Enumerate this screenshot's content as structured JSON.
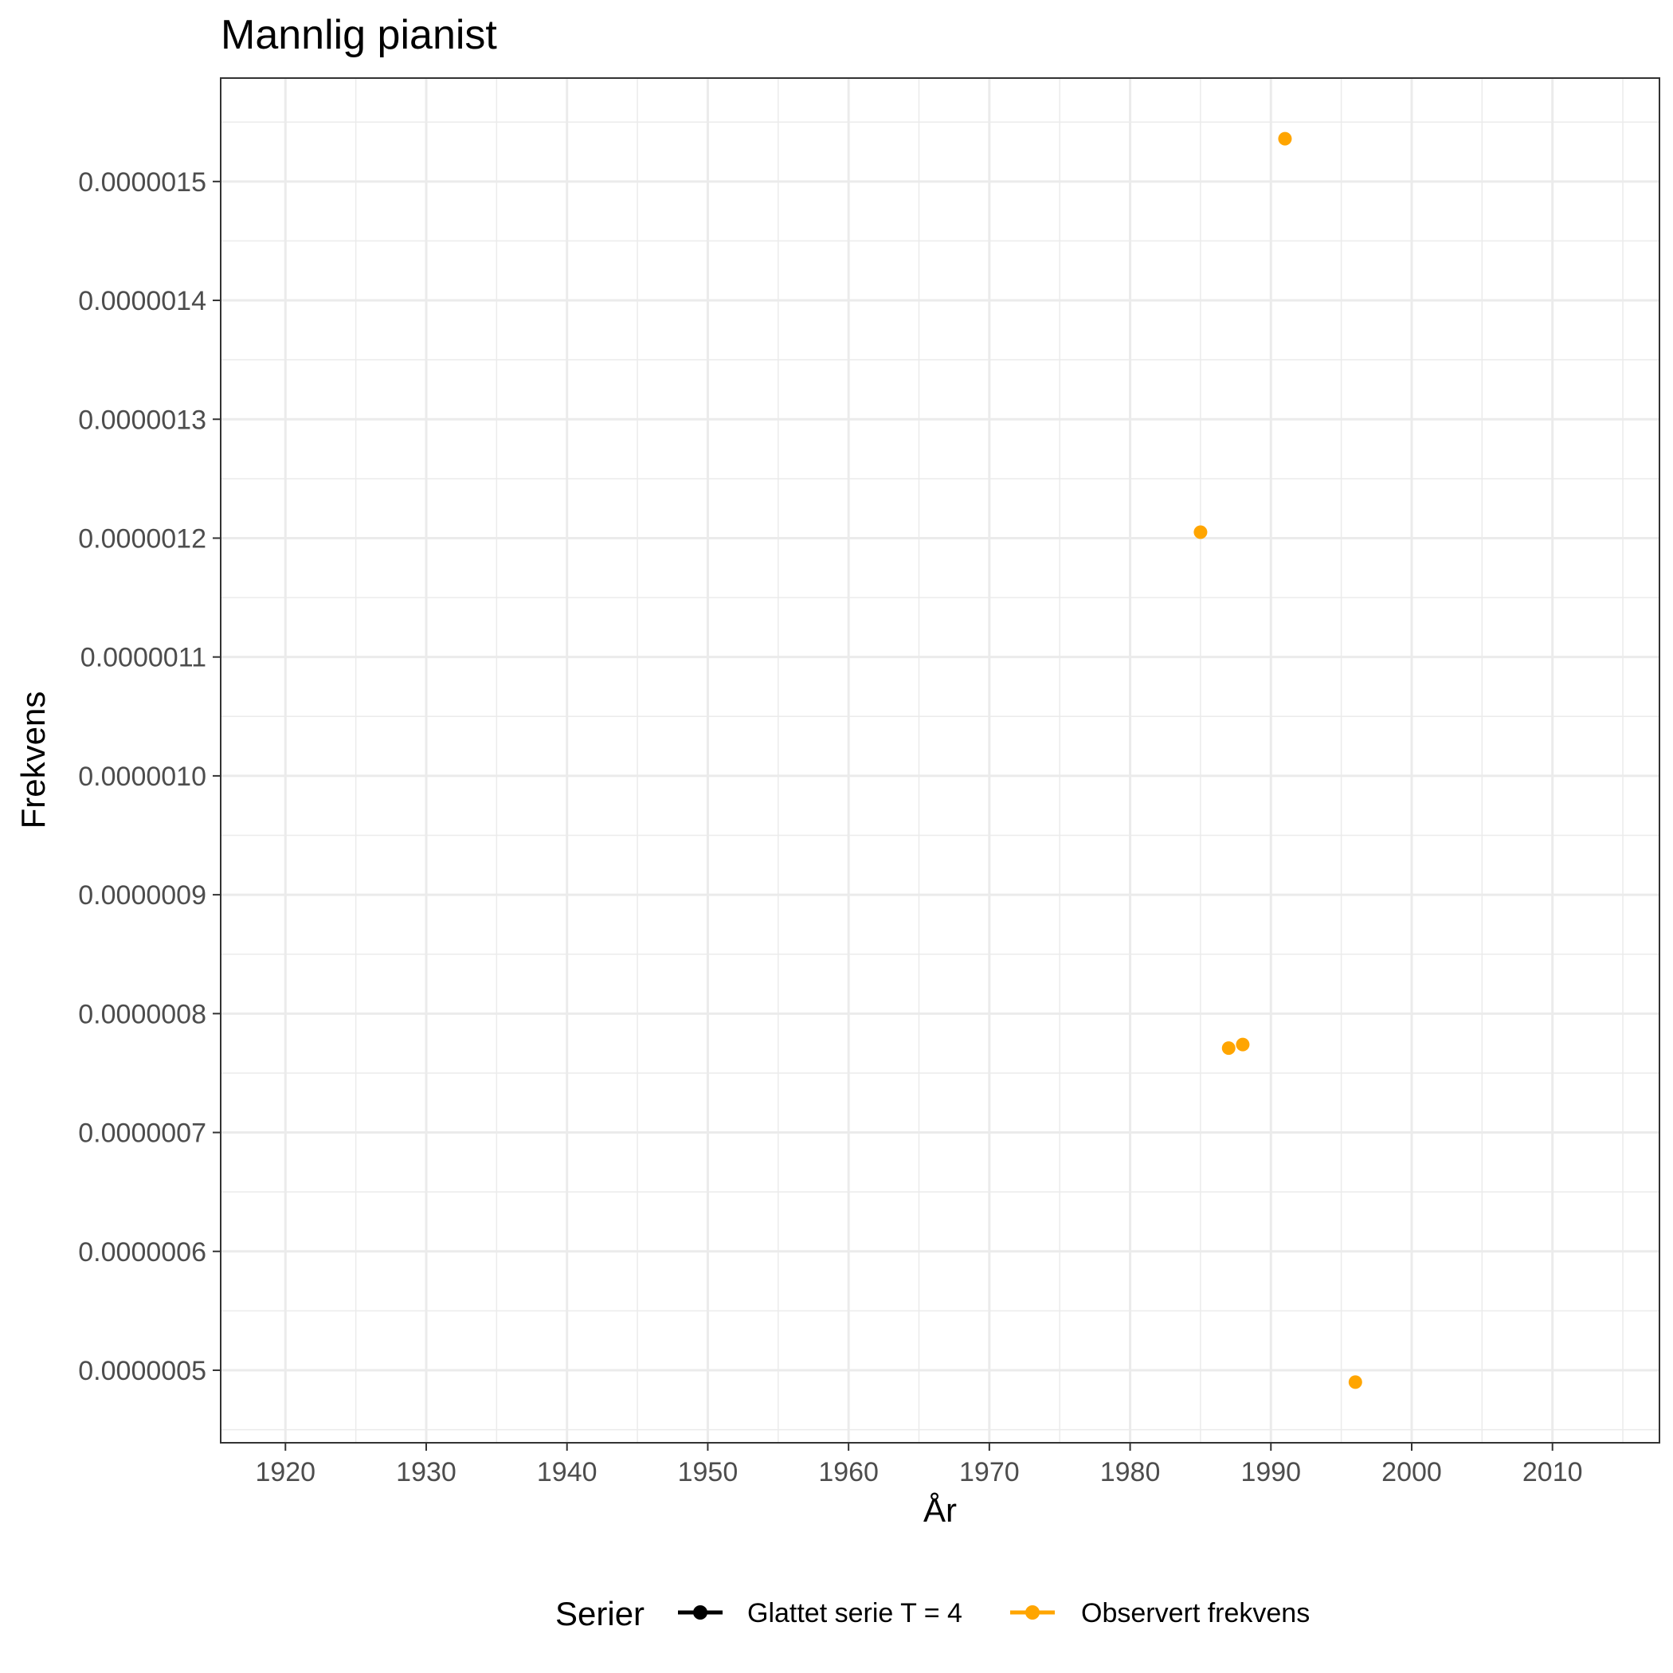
{
  "chart_data": {
    "type": "scatter",
    "title": "Mannlig pianist",
    "xlabel": "År",
    "ylabel": "Frekvens",
    "xlim": [
      1915.4,
      2017.6
    ],
    "ylim": [
      4.39e-07,
      1.587e-06
    ],
    "x_ticks": [
      1920,
      1930,
      1940,
      1950,
      1960,
      1970,
      1980,
      1990,
      2000,
      2010
    ],
    "x_tick_labels": [
      "1920",
      "1930",
      "1940",
      "1950",
      "1960",
      "1970",
      "1980",
      "1990",
      "2000",
      "2010"
    ],
    "y_ticks": [
      5e-07,
      6e-07,
      7e-07,
      8e-07,
      9e-07,
      1e-06,
      1.1e-06,
      1.2e-06,
      1.3e-06,
      1.4e-06,
      1.5e-06
    ],
    "y_tick_labels": [
      "0.0000005",
      "0.0000006",
      "0.0000007",
      "0.0000008",
      "0.0000009",
      "0.0000010",
      "0.0000011",
      "0.0000012",
      "0.0000013",
      "0.0000014",
      "0.0000015"
    ],
    "grid": true,
    "legend": {
      "title": "Serier",
      "placement": "bottom",
      "entries": [
        {
          "label": "Glattet serie T  = 4",
          "color": "#000000"
        },
        {
          "label": "Observert frekvens",
          "color": "#FFA500"
        }
      ]
    },
    "series": [
      {
        "name": "Observert frekvens",
        "color": "#FFA500",
        "x": [
          1985,
          1987,
          1988,
          1991,
          1996
        ],
        "y": [
          1.205e-06,
          7.71e-07,
          7.74e-07,
          1.536e-06,
          4.9e-07
        ]
      },
      {
        "name": "Glattet serie T  = 4",
        "color": "#000000",
        "x": [],
        "y": []
      }
    ]
  }
}
